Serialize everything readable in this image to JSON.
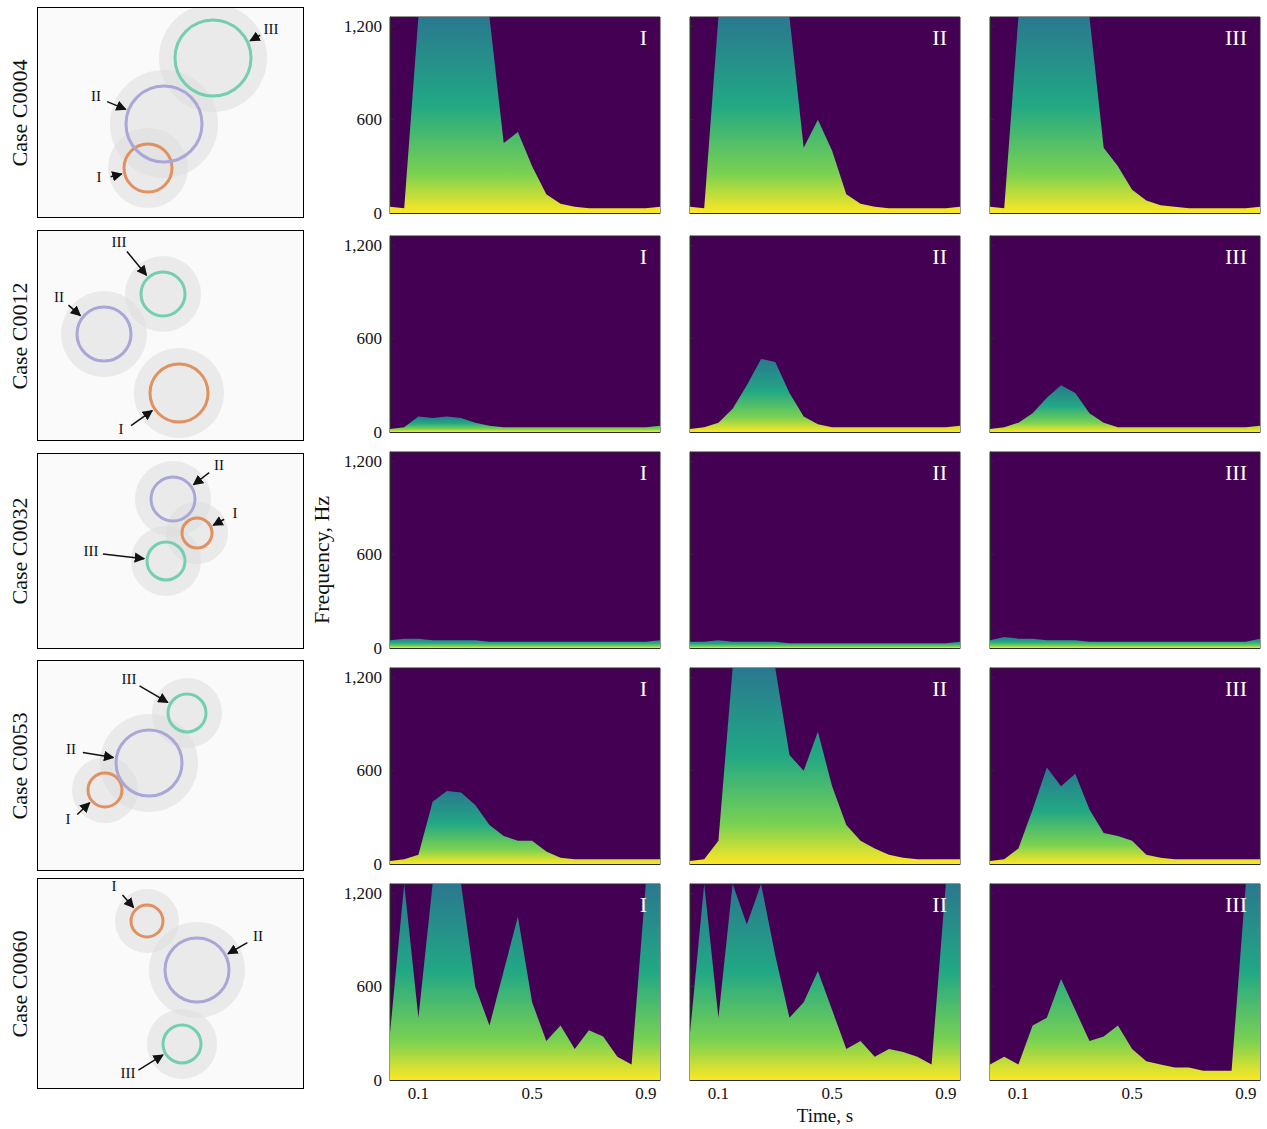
{
  "figure": {
    "xlabel": "Time, s",
    "ylabel": "Frequency, Hz"
  },
  "cases": [
    {
      "label": "Case C0004",
      "regions": [
        "I",
        "II",
        "III"
      ]
    },
    {
      "label": "Case C0012",
      "regions": [
        "I",
        "II",
        "III"
      ]
    },
    {
      "label": "Case C0032",
      "regions": [
        "I",
        "II",
        "III"
      ]
    },
    {
      "label": "Case C0053",
      "regions": [
        "I",
        "II",
        "III"
      ]
    },
    {
      "label": "Case C0060",
      "regions": [
        "I",
        "II",
        "III"
      ]
    }
  ],
  "chart_data": [
    {
      "type": "area",
      "title": "I",
      "x": [
        0,
        0.05,
        0.1,
        0.15,
        0.2,
        0.25,
        0.3,
        0.35,
        0.4,
        0.45,
        0.5,
        0.55,
        0.6,
        0.65,
        0.7,
        0.75,
        0.8,
        0.85,
        0.9,
        0.95
      ],
      "values": [
        40,
        30,
        1260,
        1260,
        1260,
        1260,
        1260,
        1260,
        450,
        520,
        300,
        120,
        60,
        40,
        30,
        30,
        30,
        30,
        30,
        40
      ],
      "xlim": [
        0,
        0.95
      ],
      "ylim": [
        0,
        1260
      ],
      "xticks": [
        0.1,
        0.5,
        0.9
      ],
      "yticks": [
        0,
        600,
        1200
      ],
      "tick_labels": "y",
      "grid": false
    },
    {
      "type": "area",
      "title": "II",
      "x": [
        0,
        0.05,
        0.1,
        0.15,
        0.2,
        0.25,
        0.3,
        0.35,
        0.4,
        0.45,
        0.5,
        0.55,
        0.6,
        0.65,
        0.7,
        0.75,
        0.8,
        0.85,
        0.9,
        0.95
      ],
      "values": [
        40,
        30,
        1260,
        1260,
        1260,
        1260,
        1260,
        1260,
        420,
        600,
        400,
        120,
        60,
        40,
        30,
        30,
        30,
        30,
        30,
        40
      ],
      "xlim": [
        0,
        0.95
      ],
      "ylim": [
        0,
        1260
      ],
      "xticks": [
        0.1,
        0.5,
        0.9
      ],
      "yticks": [
        0,
        600,
        1200
      ],
      "tick_labels": false,
      "grid": false
    },
    {
      "type": "area",
      "title": "III",
      "x": [
        0,
        0.05,
        0.1,
        0.15,
        0.2,
        0.25,
        0.3,
        0.35,
        0.4,
        0.45,
        0.5,
        0.55,
        0.6,
        0.65,
        0.7,
        0.75,
        0.8,
        0.85,
        0.9,
        0.95
      ],
      "values": [
        40,
        30,
        1260,
        1260,
        1260,
        1260,
        1260,
        1260,
        420,
        300,
        150,
        80,
        50,
        40,
        30,
        30,
        30,
        30,
        30,
        40
      ],
      "xlim": [
        0,
        0.95
      ],
      "ylim": [
        0,
        1260
      ],
      "xticks": [
        0.1,
        0.5,
        0.9
      ],
      "yticks": [
        0,
        600,
        1200
      ],
      "tick_labels": false,
      "grid": false
    },
    {
      "type": "area",
      "title": "I",
      "x": [
        0,
        0.05,
        0.1,
        0.15,
        0.2,
        0.25,
        0.3,
        0.35,
        0.4,
        0.45,
        0.5,
        0.55,
        0.6,
        0.65,
        0.7,
        0.75,
        0.8,
        0.85,
        0.9,
        0.95
      ],
      "values": [
        20,
        30,
        100,
        90,
        100,
        90,
        60,
        40,
        30,
        30,
        30,
        30,
        30,
        30,
        30,
        30,
        30,
        30,
        30,
        40
      ],
      "xlim": [
        0,
        0.95
      ],
      "ylim": [
        0,
        1260
      ],
      "xticks": [
        0.1,
        0.5,
        0.9
      ],
      "yticks": [
        0,
        600,
        1200
      ],
      "tick_labels": "y",
      "grid": false
    },
    {
      "type": "area",
      "title": "II",
      "x": [
        0,
        0.05,
        0.1,
        0.15,
        0.2,
        0.25,
        0.3,
        0.35,
        0.4,
        0.45,
        0.5,
        0.55,
        0.6,
        0.65,
        0.7,
        0.75,
        0.8,
        0.85,
        0.9,
        0.95
      ],
      "values": [
        20,
        30,
        60,
        150,
        300,
        470,
        450,
        250,
        100,
        50,
        30,
        30,
        30,
        30,
        30,
        30,
        30,
        30,
        30,
        40
      ],
      "xlim": [
        0,
        0.95
      ],
      "ylim": [
        0,
        1260
      ],
      "xticks": [
        0.1,
        0.5,
        0.9
      ],
      "yticks": [
        0,
        600,
        1200
      ],
      "tick_labels": false,
      "grid": false
    },
    {
      "type": "area",
      "title": "III",
      "x": [
        0,
        0.05,
        0.1,
        0.15,
        0.2,
        0.25,
        0.3,
        0.35,
        0.4,
        0.45,
        0.5,
        0.55,
        0.6,
        0.65,
        0.7,
        0.75,
        0.8,
        0.85,
        0.9,
        0.95
      ],
      "values": [
        20,
        30,
        60,
        120,
        220,
        300,
        250,
        120,
        60,
        30,
        30,
        30,
        30,
        30,
        30,
        30,
        30,
        30,
        30,
        40
      ],
      "xlim": [
        0,
        0.95
      ],
      "ylim": [
        0,
        1260
      ],
      "xticks": [
        0.1,
        0.5,
        0.9
      ],
      "yticks": [
        0,
        600,
        1200
      ],
      "tick_labels": false,
      "grid": false
    },
    {
      "type": "area",
      "title": "I",
      "x": [
        0,
        0.05,
        0.1,
        0.15,
        0.2,
        0.25,
        0.3,
        0.35,
        0.4,
        0.45,
        0.5,
        0.55,
        0.6,
        0.65,
        0.7,
        0.75,
        0.8,
        0.85,
        0.9,
        0.95
      ],
      "values": [
        50,
        60,
        60,
        50,
        50,
        50,
        50,
        40,
        40,
        40,
        40,
        40,
        40,
        40,
        40,
        40,
        40,
        40,
        40,
        50
      ],
      "xlim": [
        0,
        0.95
      ],
      "ylim": [
        0,
        1260
      ],
      "xticks": [
        0.1,
        0.5,
        0.9
      ],
      "yticks": [
        0,
        600,
        1200
      ],
      "tick_labels": "y",
      "grid": false
    },
    {
      "type": "area",
      "title": "II",
      "x": [
        0,
        0.05,
        0.1,
        0.15,
        0.2,
        0.25,
        0.3,
        0.35,
        0.4,
        0.45,
        0.5,
        0.55,
        0.6,
        0.65,
        0.7,
        0.75,
        0.8,
        0.85,
        0.9,
        0.95
      ],
      "values": [
        40,
        40,
        50,
        40,
        40,
        40,
        40,
        30,
        30,
        30,
        30,
        30,
        30,
        30,
        30,
        30,
        30,
        30,
        30,
        40
      ],
      "xlim": [
        0,
        0.95
      ],
      "ylim": [
        0,
        1260
      ],
      "xticks": [
        0.1,
        0.5,
        0.9
      ],
      "yticks": [
        0,
        600,
        1200
      ],
      "tick_labels": false,
      "grid": false
    },
    {
      "type": "area",
      "title": "III",
      "x": [
        0,
        0.05,
        0.1,
        0.15,
        0.2,
        0.25,
        0.3,
        0.35,
        0.4,
        0.45,
        0.5,
        0.55,
        0.6,
        0.65,
        0.7,
        0.75,
        0.8,
        0.85,
        0.9,
        0.95
      ],
      "values": [
        50,
        70,
        60,
        60,
        50,
        50,
        50,
        40,
        40,
        40,
        40,
        40,
        40,
        40,
        40,
        40,
        40,
        40,
        40,
        60
      ],
      "xlim": [
        0,
        0.95
      ],
      "ylim": [
        0,
        1260
      ],
      "xticks": [
        0.1,
        0.5,
        0.9
      ],
      "yticks": [
        0,
        600,
        1200
      ],
      "tick_labels": false,
      "grid": false
    },
    {
      "type": "area",
      "title": "I",
      "x": [
        0,
        0.05,
        0.1,
        0.15,
        0.2,
        0.25,
        0.3,
        0.35,
        0.4,
        0.45,
        0.5,
        0.55,
        0.6,
        0.65,
        0.7,
        0.75,
        0.8,
        0.85,
        0.9,
        0.95
      ],
      "values": [
        20,
        30,
        60,
        400,
        470,
        460,
        380,
        250,
        180,
        150,
        150,
        80,
        40,
        30,
        30,
        30,
        30,
        30,
        30,
        30
      ],
      "xlim": [
        0,
        0.95
      ],
      "ylim": [
        0,
        1260
      ],
      "xticks": [
        0.1,
        0.5,
        0.9
      ],
      "yticks": [
        0,
        600,
        1200
      ],
      "tick_labels": "y",
      "grid": false
    },
    {
      "type": "area",
      "title": "II",
      "x": [
        0,
        0.05,
        0.1,
        0.15,
        0.2,
        0.25,
        0.3,
        0.35,
        0.4,
        0.45,
        0.5,
        0.55,
        0.6,
        0.65,
        0.7,
        0.75,
        0.8,
        0.85,
        0.9,
        0.95
      ],
      "values": [
        20,
        30,
        150,
        1260,
        1260,
        1260,
        1260,
        700,
        600,
        850,
        500,
        250,
        150,
        100,
        60,
        40,
        30,
        30,
        30,
        30
      ],
      "xlim": [
        0,
        0.95
      ],
      "ylim": [
        0,
        1260
      ],
      "xticks": [
        0.1,
        0.5,
        0.9
      ],
      "yticks": [
        0,
        600,
        1200
      ],
      "tick_labels": false,
      "grid": false
    },
    {
      "type": "area",
      "title": "III",
      "x": [
        0,
        0.05,
        0.1,
        0.15,
        0.2,
        0.25,
        0.3,
        0.35,
        0.4,
        0.45,
        0.5,
        0.55,
        0.6,
        0.65,
        0.7,
        0.75,
        0.8,
        0.85,
        0.9,
        0.95
      ],
      "values": [
        20,
        30,
        100,
        350,
        620,
        500,
        580,
        350,
        200,
        180,
        150,
        60,
        40,
        30,
        30,
        30,
        30,
        30,
        30,
        30
      ],
      "xlim": [
        0,
        0.95
      ],
      "ylim": [
        0,
        1260
      ],
      "xticks": [
        0.1,
        0.5,
        0.9
      ],
      "yticks": [
        0,
        600,
        1200
      ],
      "tick_labels": false,
      "grid": false
    },
    {
      "type": "area",
      "title": "I",
      "x": [
        0,
        0.05,
        0.1,
        0.15,
        0.2,
        0.25,
        0.3,
        0.35,
        0.4,
        0.45,
        0.5,
        0.55,
        0.6,
        0.65,
        0.7,
        0.75,
        0.8,
        0.85,
        0.9,
        0.95
      ],
      "values": [
        300,
        1260,
        400,
        1260,
        1260,
        1260,
        600,
        350,
        700,
        1050,
        500,
        250,
        350,
        200,
        320,
        280,
        150,
        100,
        1260,
        1260
      ],
      "xlim": [
        0,
        0.95
      ],
      "ylim": [
        0,
        1260
      ],
      "xticks": [
        0.1,
        0.5,
        0.9
      ],
      "yticks": [
        0,
        600,
        1200
      ],
      "tick_labels": true,
      "grid": false
    },
    {
      "type": "area",
      "title": "II",
      "x": [
        0,
        0.05,
        0.1,
        0.15,
        0.2,
        0.25,
        0.3,
        0.35,
        0.4,
        0.45,
        0.5,
        0.55,
        0.6,
        0.65,
        0.7,
        0.75,
        0.8,
        0.85,
        0.9,
        0.95
      ],
      "values": [
        300,
        1260,
        400,
        1260,
        1000,
        1260,
        800,
        400,
        500,
        700,
        450,
        200,
        250,
        150,
        200,
        180,
        150,
        100,
        1260,
        1260
      ],
      "xlim": [
        0,
        0.95
      ],
      "ylim": [
        0,
        1260
      ],
      "xticks": [
        0.1,
        0.5,
        0.9
      ],
      "yticks": [
        0,
        600,
        1200
      ],
      "tick_labels": "x",
      "grid": false
    },
    {
      "type": "area",
      "title": "III",
      "x": [
        0,
        0.05,
        0.1,
        0.15,
        0.2,
        0.25,
        0.3,
        0.35,
        0.4,
        0.45,
        0.5,
        0.55,
        0.6,
        0.65,
        0.7,
        0.75,
        0.8,
        0.85,
        0.9,
        0.95
      ],
      "values": [
        100,
        150,
        100,
        350,
        400,
        650,
        450,
        250,
        280,
        350,
        200,
        120,
        100,
        80,
        80,
        60,
        60,
        60,
        1260,
        1260
      ],
      "xlim": [
        0,
        0.95
      ],
      "ylim": [
        0,
        1260
      ],
      "xticks": [
        0.1,
        0.5,
        0.9
      ],
      "yticks": [
        0,
        600,
        1200
      ],
      "tick_labels": "x",
      "grid": false
    }
  ]
}
